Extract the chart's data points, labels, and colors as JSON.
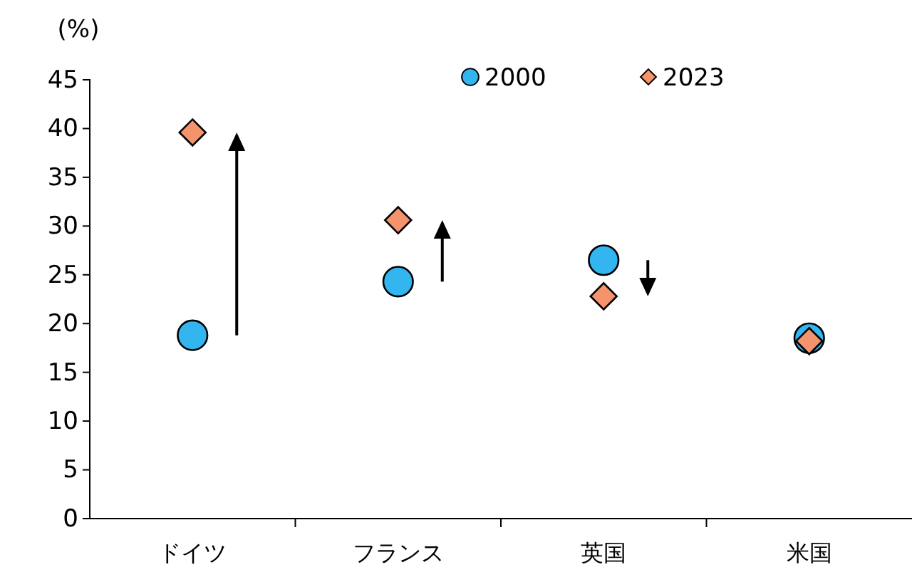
{
  "chart_data": {
    "type": "scatter",
    "ylabel": "(%)",
    "categories": [
      "ドイツ",
      "フランス",
      "英国",
      "米国"
    ],
    "ylim": [
      0,
      45
    ],
    "yticks": [
      0,
      5,
      10,
      15,
      20,
      25,
      30,
      35,
      40,
      45
    ],
    "legend": "top",
    "grid": false,
    "series": [
      {
        "name": "2000",
        "color": "#33b5f0",
        "marker": "circle",
        "values": [
          18.8,
          24.3,
          26.5,
          18.5
        ]
      },
      {
        "name": "2023",
        "color": "#f4936c",
        "marker": "diamond",
        "values": [
          39.6,
          30.6,
          22.8,
          18.2
        ]
      }
    ]
  }
}
